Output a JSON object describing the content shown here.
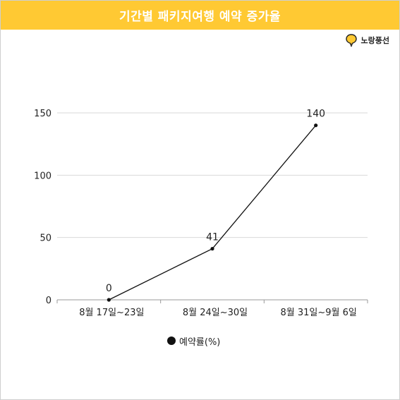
{
  "header": {
    "title": "기간별 패키지여행 예약 증가율",
    "background_color": "#FFC933"
  },
  "brand": {
    "name": "노랑풍선",
    "icon": "yellow-balloon-logo-icon"
  },
  "chart_data": {
    "type": "line",
    "categories": [
      "8월 17일~23일",
      "8월 24일~30일",
      "8월 31일~9월 6일"
    ],
    "series": [
      {
        "name": "예약률(%)",
        "values": [
          0,
          41,
          140
        ],
        "data_labels": [
          "0",
          "41",
          "140"
        ],
        "color": "#111111"
      }
    ],
    "ylim": [
      0,
      150
    ],
    "yticks": [
      0,
      50,
      100,
      150
    ],
    "ytick_labels": [
      "0",
      "50",
      "100",
      "150"
    ],
    "xlabel": "",
    "ylabel": "",
    "grid": true,
    "legend_position": "bottom-center",
    "gridline_color": "#d9d9d9"
  }
}
